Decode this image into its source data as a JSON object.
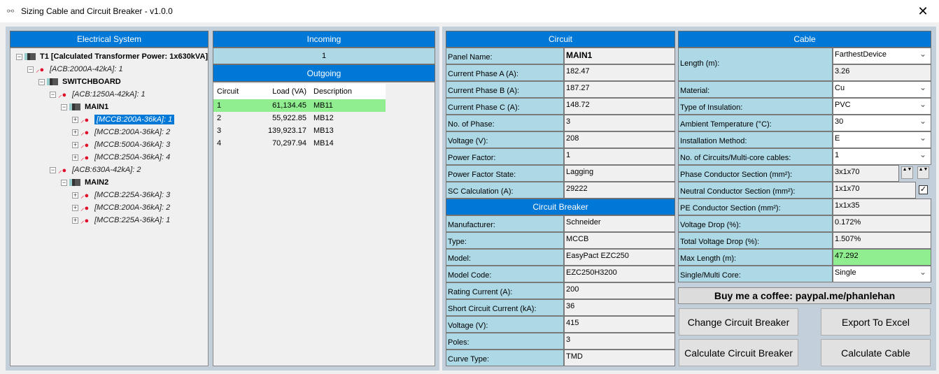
{
  "window": {
    "title": "Sizing Cable and Circuit Breaker - v1.0.0",
    "close": "✕"
  },
  "tree": {
    "header": "Electrical System",
    "nodes": [
      {
        "text": "T1 [Calculated Transformer Power: 1x630kVA]",
        "level": 0,
        "type": "panel",
        "exp": "-"
      },
      {
        "text": "[ACB:2000A-42kA]: 1",
        "level": 1,
        "type": "breaker",
        "exp": "-"
      },
      {
        "text": "SWITCHBOARD",
        "level": 2,
        "type": "panel",
        "exp": "-"
      },
      {
        "text": "[ACB:1250A-42kA]: 1",
        "level": 3,
        "type": "breaker",
        "exp": "-"
      },
      {
        "text": "MAIN1",
        "level": 4,
        "type": "panel",
        "exp": "-"
      },
      {
        "text": "[MCCB:200A-36kA]: 1",
        "level": 5,
        "type": "breaker",
        "exp": "+",
        "selected": true
      },
      {
        "text": "[MCCB:200A-36kA]: 2",
        "level": 5,
        "type": "breaker",
        "exp": "+"
      },
      {
        "text": "[MCCB:500A-36kA]: 3",
        "level": 5,
        "type": "breaker",
        "exp": "+"
      },
      {
        "text": "[MCCB:250A-36kA]: 4",
        "level": 5,
        "type": "breaker",
        "exp": "+"
      },
      {
        "text": "[ACB:630A-42kA]: 2",
        "level": 3,
        "type": "breaker",
        "exp": "-"
      },
      {
        "text": "MAIN2",
        "level": 4,
        "type": "panel",
        "exp": "-"
      },
      {
        "text": "[MCCB:225A-36kA]: 3",
        "level": 5,
        "type": "breaker",
        "exp": "+"
      },
      {
        "text": "[MCCB:200A-36kA]: 2",
        "level": 5,
        "type": "breaker",
        "exp": "+"
      },
      {
        "text": "[MCCB:225A-36kA]: 1",
        "level": 5,
        "type": "breaker",
        "exp": "+"
      }
    ]
  },
  "incoming": {
    "header": "Incoming",
    "value": "1"
  },
  "outgoing": {
    "header": "Outgoing",
    "columns": [
      "Circuit",
      "Load (VA)",
      "Description"
    ],
    "rows": [
      [
        "1",
        "61,134.45",
        "MB11"
      ],
      [
        "2",
        "55,922.85",
        "MB12"
      ],
      [
        "3",
        "139,923.17",
        "MB13"
      ],
      [
        "4",
        "70,297.94",
        "MB14"
      ]
    ]
  },
  "circuit": {
    "header": "Circuit",
    "rows": [
      {
        "label": "Panel Name:",
        "value": "MAIN1"
      },
      {
        "label": "Current Phase A (A):",
        "value": "182.47"
      },
      {
        "label": "Current Phase B (A):",
        "value": "187.27"
      },
      {
        "label": "Current Phase C (A):",
        "value": "148.72"
      },
      {
        "label": "No. of Phase:",
        "value": "3"
      },
      {
        "label": "Voltage (V):",
        "value": "208"
      },
      {
        "label": "Power Factor:",
        "value": "1"
      },
      {
        "label": "Power Factor State:",
        "value": "Lagging"
      },
      {
        "label": "SC Calculation (A):",
        "value": "29222"
      }
    ]
  },
  "breaker": {
    "header": "Circuit Breaker",
    "rows": [
      {
        "label": "Manufacturer:",
        "value": "Schneider"
      },
      {
        "label": "Type:",
        "value": "MCCB"
      },
      {
        "label": "Model:",
        "value": "EasyPact EZC250"
      },
      {
        "label": "Model Code:",
        "value": "EZC250H3200"
      },
      {
        "label": "Rating Current (A):",
        "value": "200"
      },
      {
        "label": "Short Circuit Current (kA):",
        "value": "36"
      },
      {
        "label": "Voltage (V):",
        "value": "415"
      },
      {
        "label": "Poles:",
        "value": "3"
      },
      {
        "label": "Curve Type:",
        "value": "TMD"
      }
    ]
  },
  "cable": {
    "header": "Cable",
    "length": {
      "label": "Length (m):",
      "mode": "FarthestDevice",
      "value": "3.26"
    },
    "rows": [
      {
        "label": "Material:",
        "value": "Cu",
        "dropdown": true
      },
      {
        "label": "Type of Insulation:",
        "value": "PVC",
        "dropdown": true
      },
      {
        "label": "Ambient Temperature (°C):",
        "value": "30",
        "dropdown": true
      },
      {
        "label": "Installation Method:",
        "value": "E",
        "dropdown": true
      },
      {
        "label": "No. of Circuits/Multi-core cables:",
        "value": "1",
        "dropdown": true
      },
      {
        "label": "Phase Conductor Section (mm²):",
        "value": "3x1x70",
        "spinners": true
      },
      {
        "label": "Neutral Conductor Section (mm²):",
        "value": "1x1x70",
        "checkbox": true,
        "checked": true
      },
      {
        "label": "PE Conductor Section (mm²):",
        "value": "1x1x35"
      },
      {
        "label": "Voltage Drop (%):",
        "value": "0.172%"
      },
      {
        "label": "Total Voltage Drop (%):",
        "value": "1.507%"
      },
      {
        "label": "Max Length (m):",
        "value": "47.292",
        "highlight": "#90ee90"
      },
      {
        "label": "Single/Multi Core:",
        "value": "Single",
        "dropdown": true
      }
    ]
  },
  "coffee": "Buy me a coffee:  paypal.me/phanlehan",
  "buttons": {
    "change_cb": "Change Circuit Breaker",
    "export": "Export To Excel",
    "calc_cb": "Calculate Circuit Breaker",
    "calc_cable": "Calculate Cable"
  },
  "colors": {
    "header": "#0078d7",
    "label_bg": "#add8e6",
    "selected_row": "#90ee90"
  }
}
